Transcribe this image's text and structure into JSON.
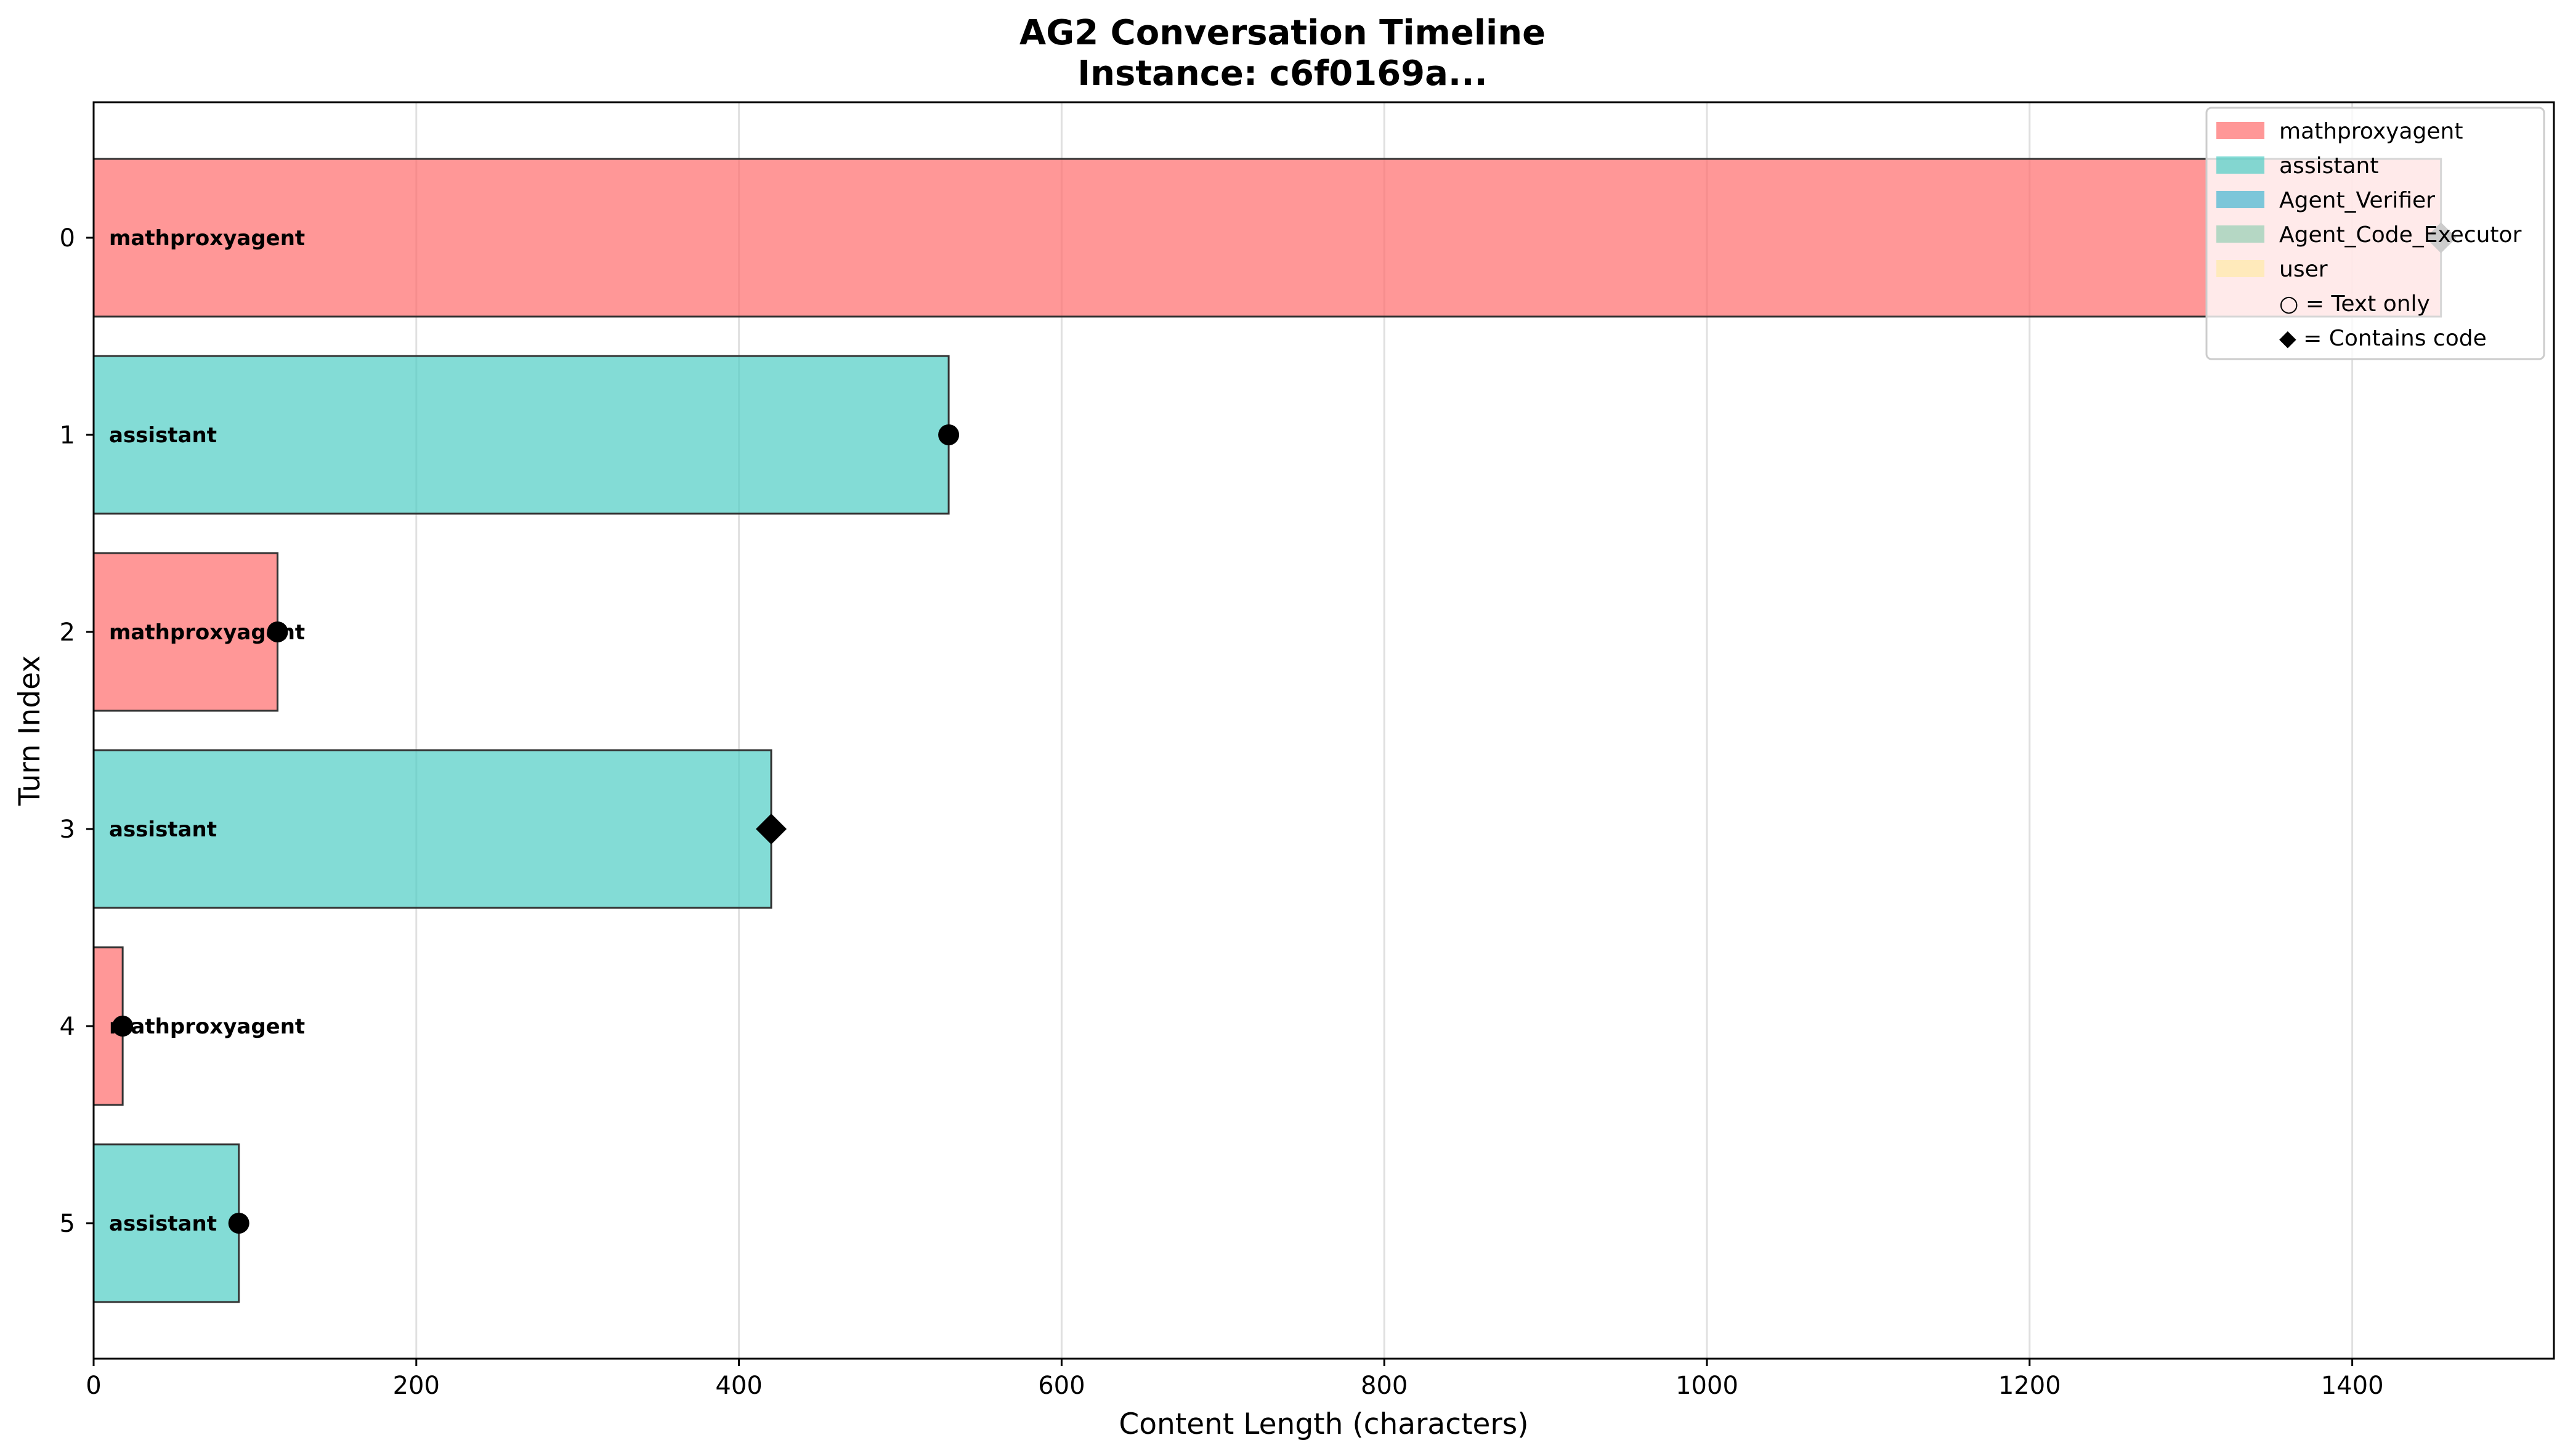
{
  "chart_data": {
    "type": "bar",
    "orientation": "horizontal",
    "title": "AG2 Conversation Timeline",
    "subtitle": "Instance: c6f0169a...",
    "xlabel": "Content Length (characters)",
    "ylabel": "Turn Index",
    "xlim": [
      0,
      1525
    ],
    "xticks": [
      0,
      200,
      400,
      600,
      800,
      1000,
      1200,
      1400
    ],
    "grid": "x",
    "legend_position": "top-right",
    "colors": {
      "mathproxyagent": "#FF6B6B",
      "assistant": "#4ECDC4",
      "Agent_Verifier": "#45B7D1",
      "Agent_Code_Executor": "#96CEB4",
      "user": "#FFEAA7"
    },
    "turns": [
      {
        "turn": 0,
        "agent": "mathproxyagent",
        "length": 1455,
        "has_code": true
      },
      {
        "turn": 1,
        "agent": "assistant",
        "length": 530,
        "has_code": false
      },
      {
        "turn": 2,
        "agent": "mathproxyagent",
        "length": 114,
        "has_code": false
      },
      {
        "turn": 3,
        "agent": "assistant",
        "length": 420,
        "has_code": true
      },
      {
        "turn": 4,
        "agent": "mathproxyagent",
        "length": 18,
        "has_code": false
      },
      {
        "turn": 5,
        "agent": "assistant",
        "length": 90,
        "has_code": false
      }
    ],
    "legend": {
      "agents": [
        "mathproxyagent",
        "assistant",
        "Agent_Verifier",
        "Agent_Code_Executor",
        "user"
      ],
      "text_only_label": "○ = Text only",
      "code_label": "◆ = Contains code"
    }
  }
}
